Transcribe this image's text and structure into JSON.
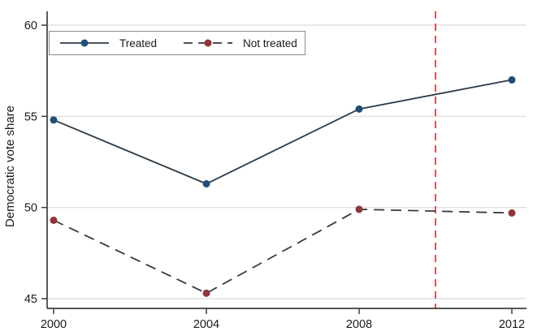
{
  "chart_data": {
    "type": "line",
    "title": "",
    "xlabel": "",
    "ylabel": "Democratic vote share",
    "x": [
      2000,
      2004,
      2008,
      2012
    ],
    "xticks": [
      2000,
      2004,
      2008,
      2012
    ],
    "yticks": [
      45,
      50,
      55,
      60
    ],
    "ylim": [
      44.5,
      60.8
    ],
    "xlim": [
      2000,
      2012
    ],
    "grid": "horizontal",
    "legend_position": "top-left-inside",
    "series": [
      {
        "name": "Treated",
        "values": [
          54.8,
          51.3,
          55.4,
          57.0
        ],
        "line_style": "solid",
        "line_color": "#2b3a4a",
        "marker": "circle",
        "marker_color": "#1f4e79"
      },
      {
        "name": "Not treated",
        "values": [
          49.3,
          45.3,
          49.9,
          49.7
        ],
        "line_style": "dashed",
        "line_color": "#343a42",
        "marker": "circle",
        "marker_color": "#90353b"
      }
    ],
    "reference_line": {
      "orientation": "vertical",
      "x": 2010,
      "style": "dashed",
      "color": "#e0524f"
    },
    "colors": {
      "grid": "#e0e0e0",
      "axis": "#3f3f3f",
      "tick_label": "#1a1a1a",
      "background": "#ffffff",
      "legend_border": "#8c8c8c"
    }
  }
}
